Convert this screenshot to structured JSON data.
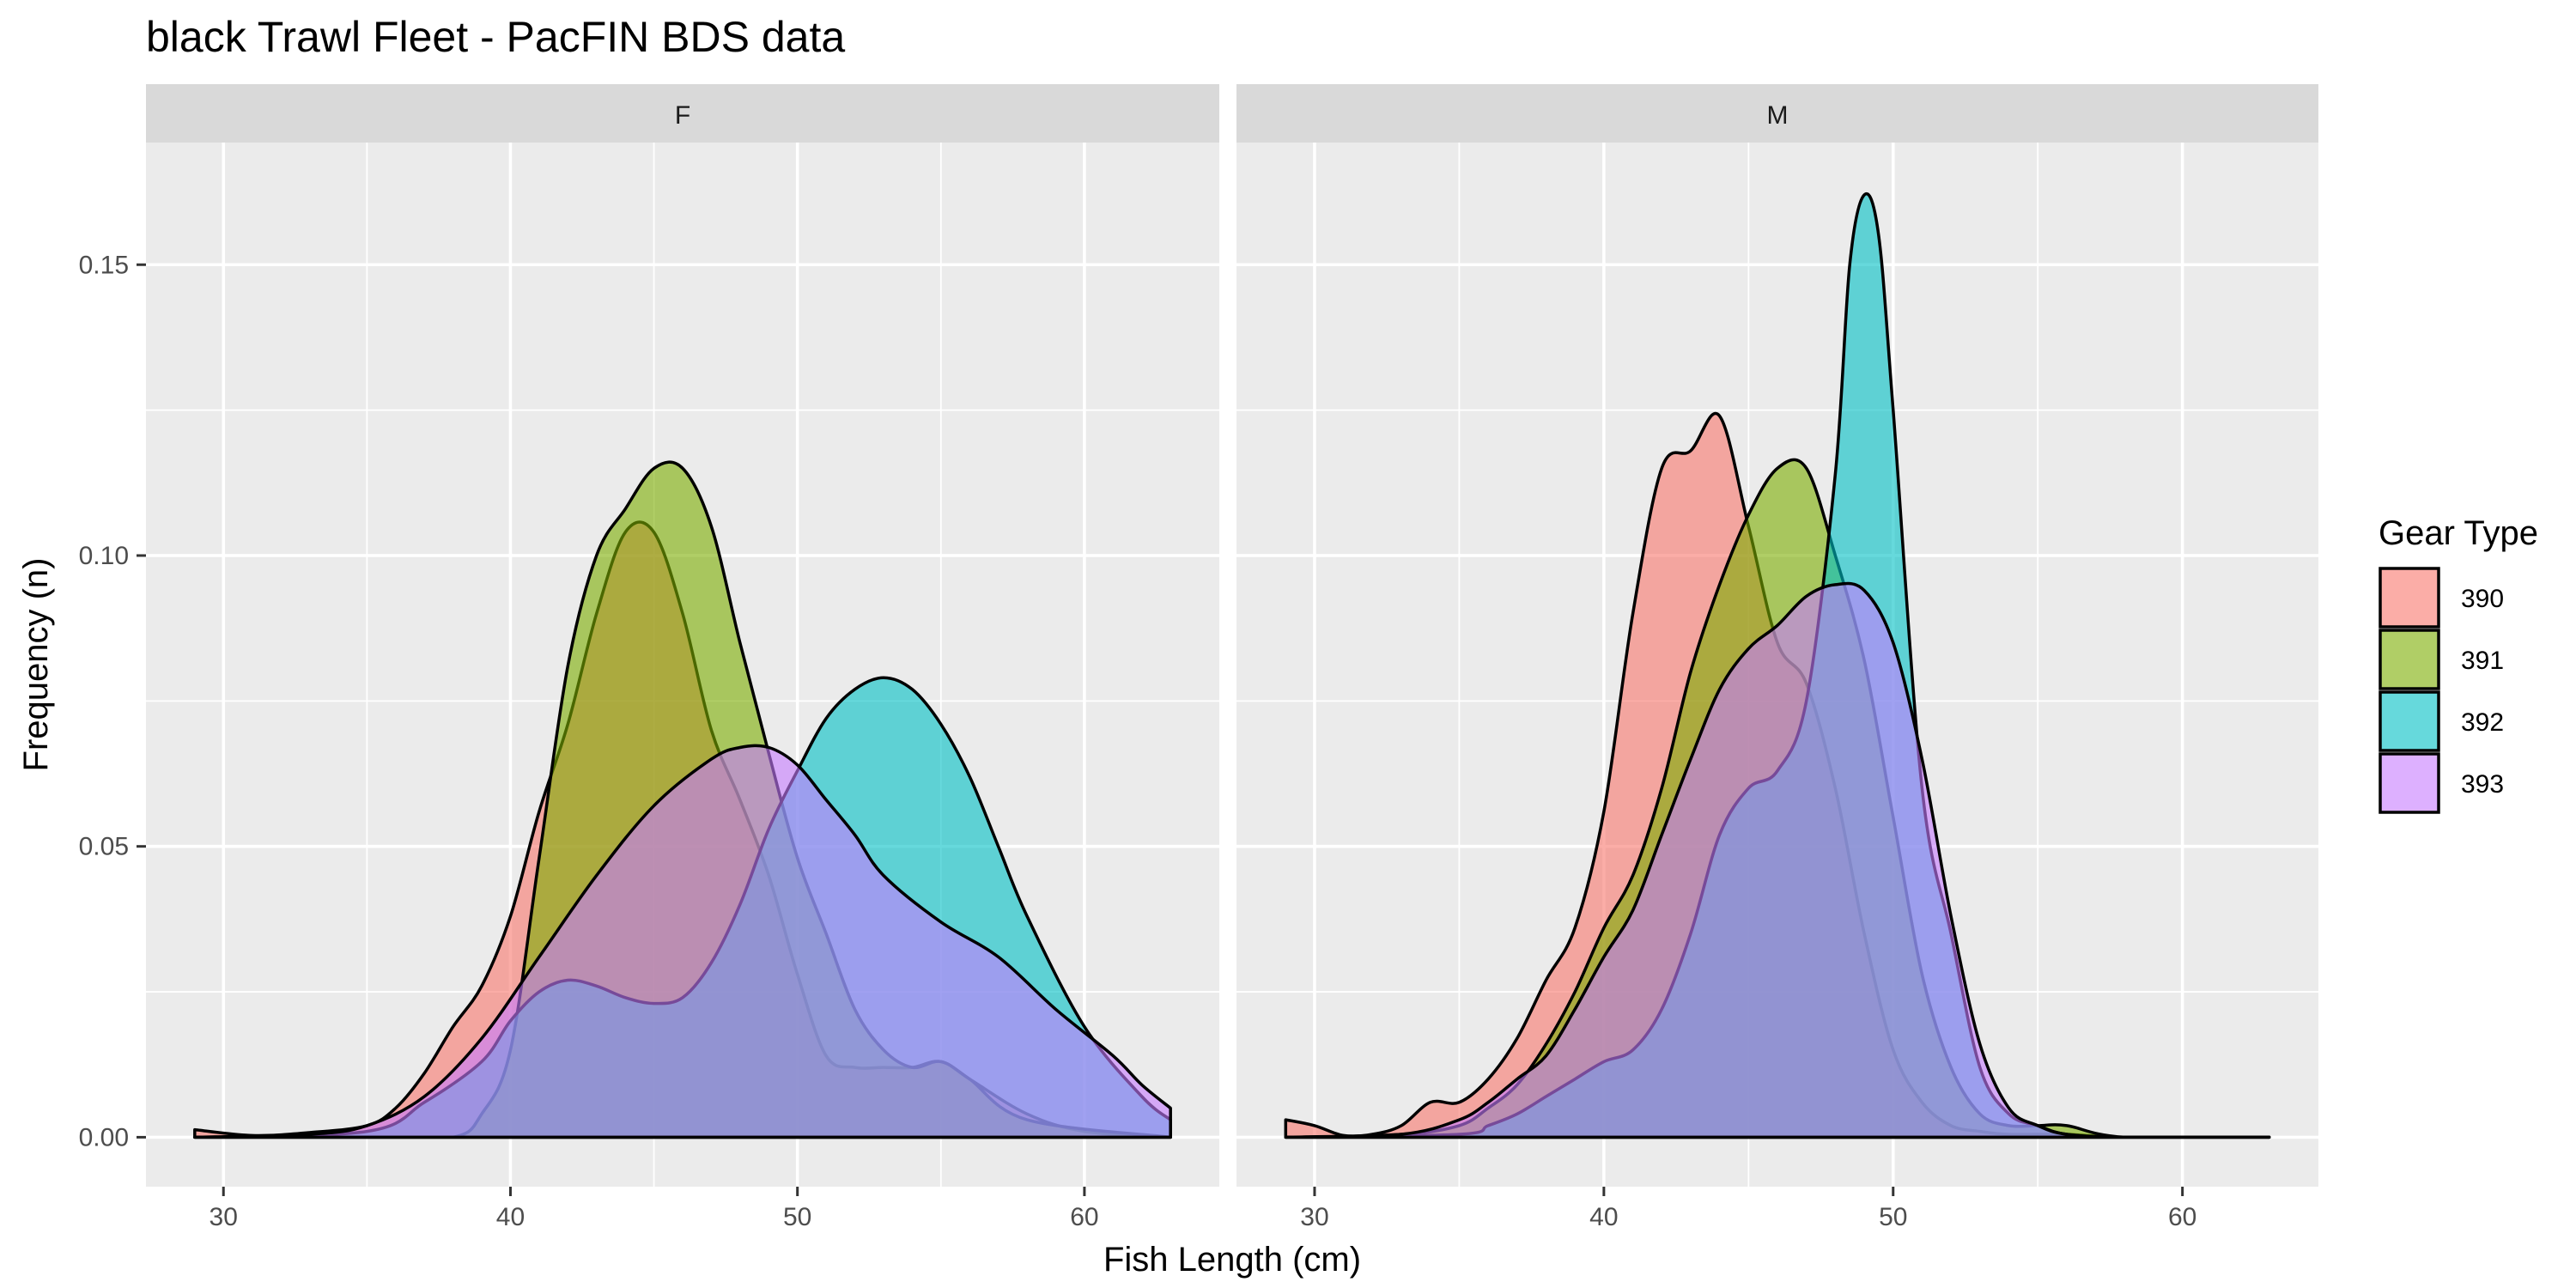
{
  "chart_data": {
    "type": "area",
    "subtype": "density",
    "title": "black Trawl Fleet - PacFIN BDS data",
    "xlabel": "Fish Length (cm)",
    "ylabel": "Frequency (n)",
    "xlim": [
      27.3,
      64.7
    ],
    "ylim": [
      -0.0085,
      0.171
    ],
    "x_ticks": [
      30,
      40,
      50,
      60
    ],
    "y_ticks": [
      0.0,
      0.05,
      0.1,
      0.15
    ],
    "x_tick_labels": [
      "30",
      "40",
      "50",
      "60"
    ],
    "y_tick_labels": [
      "0.00",
      "0.05",
      "0.10",
      "0.15"
    ],
    "grid": true,
    "legend": {
      "title": "Gear Type",
      "placement": "right",
      "entries": [
        "390",
        "391",
        "392",
        "393"
      ]
    },
    "colors": {
      "390": "#F8766D",
      "391": "#7CAE00",
      "392": "#00BFC4",
      "393": "#C77CFF"
    },
    "panels": [
      {
        "facet": "F",
        "series": [
          {
            "name": "390",
            "x": [
              29,
              31,
              33,
              35,
              36,
              37,
              38,
              39,
              40,
              41,
              42,
              43,
              44,
              45,
              46,
              47,
              48,
              49,
              50,
              51,
              52,
              53,
              54,
              55,
              56,
              58,
              60,
              63
            ],
            "y": [
              0.0013,
              0.0003,
              0.0008,
              0.002,
              0.005,
              0.011,
              0.019,
              0.026,
              0.038,
              0.056,
              0.071,
              0.09,
              0.104,
              0.104,
              0.09,
              0.07,
              0.058,
              0.045,
              0.028,
              0.014,
              0.012,
              0.012,
              0.012,
              0.013,
              0.01,
              0.004,
              0.001,
              0.0
            ]
          },
          {
            "name": "391",
            "x": [
              29,
              35,
              38,
              39,
              40,
              41,
              42,
              43,
              44,
              45,
              46,
              47,
              48,
              49,
              50,
              51,
              52,
              53,
              54,
              55,
              56,
              58,
              63
            ],
            "y": [
              0.0,
              0.0,
              0.0,
              0.004,
              0.015,
              0.048,
              0.081,
              0.1,
              0.108,
              0.115,
              0.115,
              0.105,
              0.085,
              0.066,
              0.048,
              0.035,
              0.022,
              0.015,
              0.012,
              0.013,
              0.01,
              0.003,
              0.0
            ]
          },
          {
            "name": "392",
            "x": [
              29,
              35,
              37,
              39,
              40,
              41,
              42,
              43,
              44,
              45,
              46,
              47,
              48,
              49,
              50,
              51,
              52,
              53,
              54,
              55,
              56,
              57,
              58,
              60,
              62,
              63
            ],
            "y": [
              0.0,
              0.001,
              0.006,
              0.013,
              0.02,
              0.025,
              0.027,
              0.026,
              0.024,
              0.023,
              0.024,
              0.03,
              0.04,
              0.053,
              0.063,
              0.072,
              0.077,
              0.079,
              0.077,
              0.071,
              0.062,
              0.05,
              0.038,
              0.019,
              0.007,
              0.003
            ]
          },
          {
            "name": "393",
            "x": [
              29,
              33,
              35,
              37,
              39,
              41,
              43,
              45,
              47,
              48,
              49,
              50,
              51,
              52,
              53,
              55,
              57,
              59,
              61,
              62,
              63
            ],
            "y": [
              0.0,
              0.0005,
              0.002,
              0.007,
              0.017,
              0.031,
              0.045,
              0.057,
              0.065,
              0.067,
              0.067,
              0.064,
              0.058,
              0.052,
              0.045,
              0.037,
              0.031,
              0.022,
              0.014,
              0.009,
              0.005
            ]
          }
        ]
      },
      {
        "facet": "M",
        "series": [
          {
            "name": "390",
            "x": [
              29,
              30,
              31,
              32,
              33,
              34,
              35,
              36,
              37,
              38,
              39,
              40,
              41,
              42,
              43,
              44,
              45,
              46,
              47,
              48,
              49,
              50,
              51,
              52,
              53,
              54,
              56,
              58,
              63
            ],
            "y": [
              0.003,
              0.002,
              0.0003,
              0.0005,
              0.002,
              0.006,
              0.006,
              0.01,
              0.017,
              0.027,
              0.036,
              0.056,
              0.09,
              0.115,
              0.118,
              0.124,
              0.105,
              0.085,
              0.078,
              0.06,
              0.035,
              0.015,
              0.006,
              0.002,
              0.001,
              0.0005,
              0.0005,
              0.0,
              0.0
            ]
          },
          {
            "name": "391",
            "x": [
              29,
              33,
              35,
              36,
              37,
              38,
              39,
              40,
              41,
              42,
              43,
              44,
              45,
              46,
              47,
              48,
              49,
              50,
              51,
              52,
              53,
              54,
              55,
              56,
              58,
              63
            ],
            "y": [
              0.0,
              0.0005,
              0.002,
              0.005,
              0.009,
              0.016,
              0.025,
              0.036,
              0.045,
              0.06,
              0.08,
              0.095,
              0.107,
              0.115,
              0.115,
              0.1,
              0.082,
              0.055,
              0.028,
              0.012,
              0.004,
              0.002,
              0.002,
              0.002,
              0.0,
              0.0
            ]
          },
          {
            "name": "392",
            "x": [
              29,
              35,
              36,
              37,
              38,
              39,
              40,
              41,
              42,
              43,
              44,
              45,
              46,
              47,
              48,
              48.5,
              49,
              49.5,
              50,
              51,
              52,
              53,
              54,
              55,
              56,
              58,
              63
            ],
            "y": [
              0.0,
              0.0005,
              0.002,
              0.004,
              0.007,
              0.01,
              0.013,
              0.015,
              0.022,
              0.035,
              0.052,
              0.06,
              0.063,
              0.075,
              0.114,
              0.15,
              0.162,
              0.155,
              0.125,
              0.06,
              0.035,
              0.012,
              0.004,
              0.002,
              0.0005,
              0.0,
              0.0
            ]
          },
          {
            "name": "393",
            "x": [
              29,
              33,
              35,
              36,
              37,
              38,
              39,
              40,
              41,
              42,
              43,
              44,
              45,
              46,
              47,
              48,
              49,
              50,
              51,
              52,
              53,
              54,
              55,
              56,
              58,
              63
            ],
            "y": [
              0.0,
              0.0005,
              0.003,
              0.006,
              0.01,
              0.014,
              0.022,
              0.031,
              0.039,
              0.052,
              0.065,
              0.077,
              0.084,
              0.088,
              0.093,
              0.095,
              0.094,
              0.085,
              0.065,
              0.038,
              0.016,
              0.005,
              0.002,
              0.0005,
              0.0,
              0.0
            ]
          }
        ]
      }
    ]
  }
}
